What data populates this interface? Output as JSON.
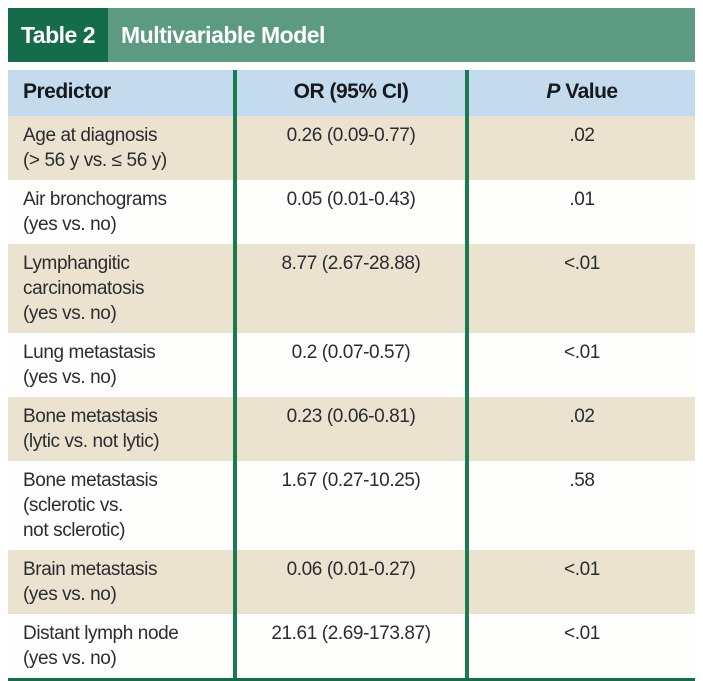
{
  "title_bar": {
    "label": "Table 2",
    "title": "Multivariable Model"
  },
  "header": {
    "predictor": "Predictor",
    "or": "OR (95% CI)",
    "p_italic": "P",
    "p_rest": " Value"
  },
  "colors": {
    "dark_green": "#156c4b",
    "light_green": "#5c9b82",
    "header_blue": "#c3dbec",
    "row_tan": "#ebe2d0",
    "divider_green": "#1a7a52"
  },
  "table": {
    "rows": [
      {
        "lines": [
          "Age at diagnosis",
          "(> 56 y vs. ≤ 56 y)"
        ],
        "or": "0.26 (0.09-0.77)",
        "p": ".02"
      },
      {
        "lines": [
          "Air bronchograms",
          "(yes vs. no)"
        ],
        "or": "0.05 (0.01-0.43)",
        "p": ".01"
      },
      {
        "lines": [
          "Lymphangitic",
          "carcinomatosis",
          "(yes vs. no)"
        ],
        "or": "8.77 (2.67-28.88)",
        "p": "<.01"
      },
      {
        "lines": [
          "Lung metastasis",
          "(yes vs. no)"
        ],
        "or": "0.2 (0.07-0.57)",
        "p": "<.01"
      },
      {
        "lines": [
          "Bone metastasis",
          "(lytic vs. not lytic)"
        ],
        "or": "0.23 (0.06-0.81)",
        "p": ".02"
      },
      {
        "lines": [
          "Bone metastasis",
          "(sclerotic vs.",
          "not sclerotic)"
        ],
        "or": "1.67 (0.27-10.25)",
        "p": ".58"
      },
      {
        "lines": [
          "Brain metastasis",
          "(yes vs. no)"
        ],
        "or": "0.06 (0.01-0.27)",
        "p": "<.01"
      },
      {
        "lines": [
          "Distant lymph node",
          "(yes vs. no)"
        ],
        "or": "21.61 (2.69-173.87)",
        "p": "<.01"
      }
    ]
  }
}
